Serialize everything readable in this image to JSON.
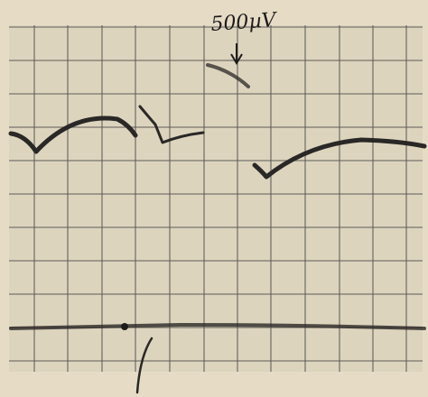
{
  "annotation": "500µV"
}
